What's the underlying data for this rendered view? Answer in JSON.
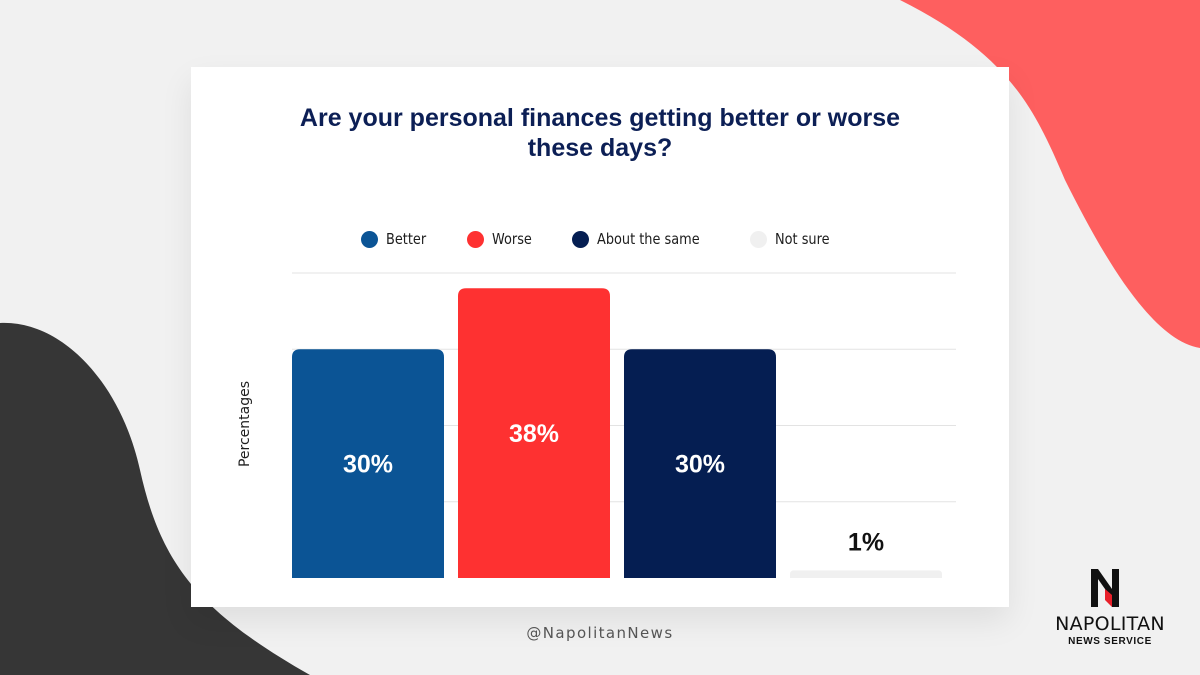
{
  "colors": {
    "page_bg": "#f1f1f1",
    "card_bg": "#ffffff",
    "title": "#0c1f55",
    "blob_red": "#fe5f5f",
    "blob_dark": "#363636",
    "grid": "#e3e3e3"
  },
  "chart_data": {
    "type": "bar",
    "title": "Are your personal finances getting better or worse these days?",
    "title_lines": [
      "Are your personal finances getting better or worse",
      "these days?"
    ],
    "categories": [
      "Better",
      "Worse",
      "About the same",
      "Not sure"
    ],
    "values": [
      30,
      38,
      30,
      1
    ],
    "value_labels": [
      "30%",
      "38%",
      "30%",
      "1%"
    ],
    "colors": [
      "#0b5495",
      "#fe3131",
      "#051e52",
      "#f0f0f0"
    ],
    "xlabel": "",
    "ylabel": "Percentages",
    "ylim": [
      0,
      40
    ],
    "grid": true,
    "legend": "top-center",
    "legend_icon": "circle"
  },
  "footer": {
    "handle": "@NapolitanNews"
  },
  "logo": {
    "icon": "napolitan-n-logo-icon",
    "name": "NAPOLITAN",
    "subtitle": "NEWS SERVICE"
  }
}
